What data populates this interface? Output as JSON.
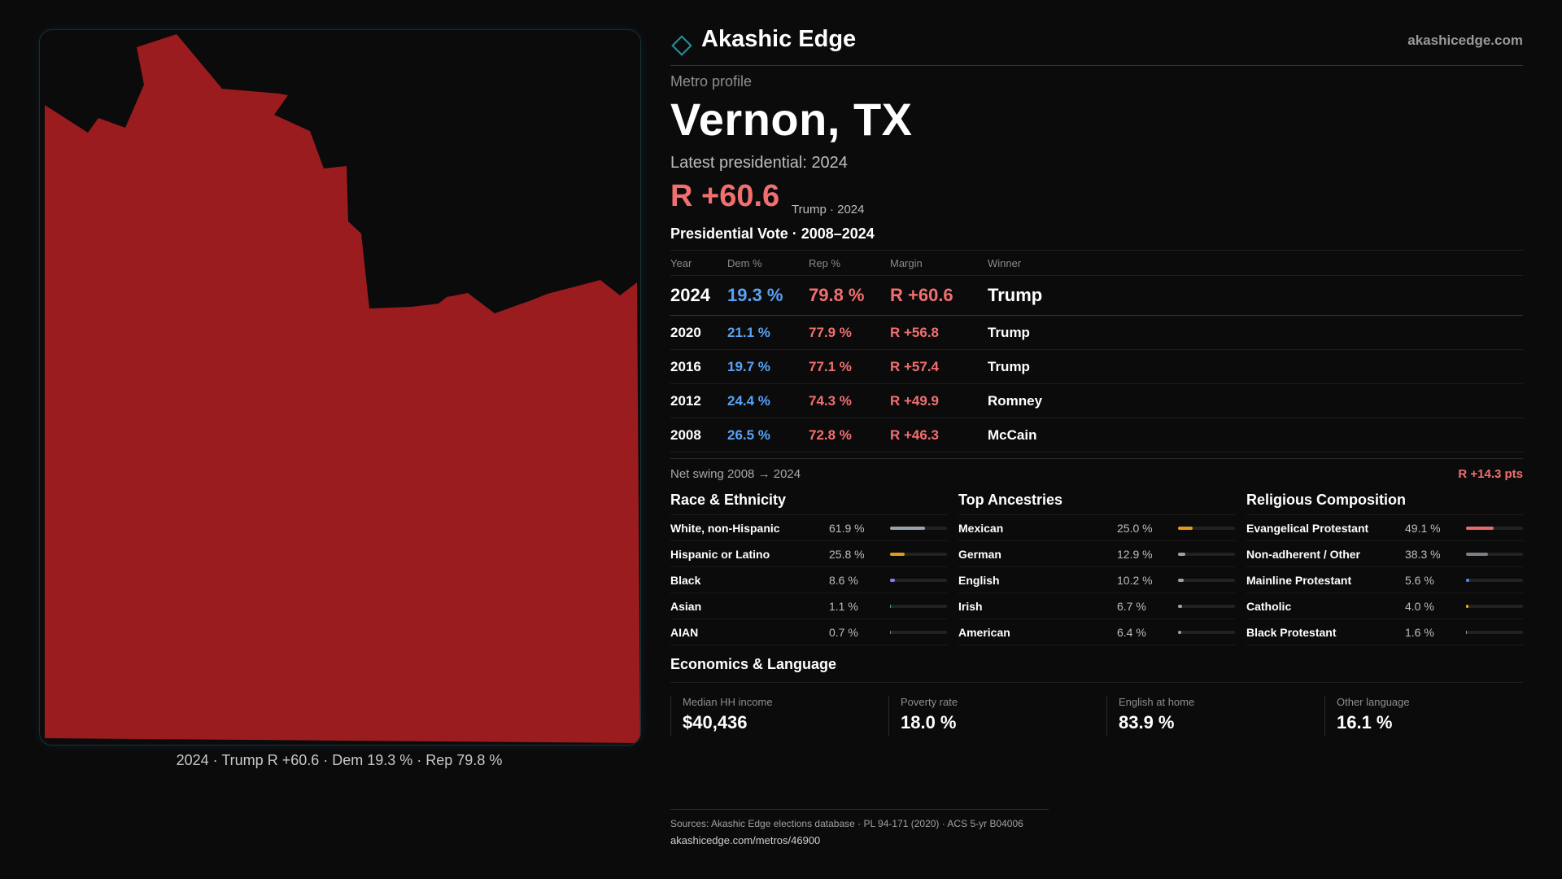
{
  "map": {
    "fill_color": "#9b1c1f",
    "caption": "2024 · Trump R +60.6 · Dem 19.3 % · Rep 79.8 %"
  },
  "brand": {
    "name": "Akashic Edge",
    "url": "akashicedge.com",
    "logo_icon": "diamond-icon",
    "accent": "#2a8fa0"
  },
  "profile": {
    "eyebrow": "Metro profile",
    "title": "Vernon, TX",
    "latest_label": "Latest presidential: 2024",
    "margin_big": "R +60.6",
    "margin_sub": "Trump · 2024"
  },
  "vote": {
    "title": "Presidential Vote · 2008–2024",
    "headers": [
      "Year",
      "Dem %",
      "Rep %",
      "Margin",
      "Winner"
    ],
    "rows": [
      {
        "year": "2024",
        "dem": "19.3 %",
        "rep": "79.8 %",
        "margin": "R +60.6",
        "winner": "Trump"
      },
      {
        "year": "2020",
        "dem": "21.1 %",
        "rep": "77.9 %",
        "margin": "R +56.8",
        "winner": "Trump"
      },
      {
        "year": "2016",
        "dem": "19.7 %",
        "rep": "77.1 %",
        "margin": "R +57.4",
        "winner": "Trump"
      },
      {
        "year": "2012",
        "dem": "24.4 %",
        "rep": "74.3 %",
        "margin": "R +49.9",
        "winner": "Romney"
      },
      {
        "year": "2008",
        "dem": "26.5 %",
        "rep": "72.8 %",
        "margin": "R +46.3",
        "winner": "McCain"
      }
    ],
    "swing_label": "Net swing 2008 → 2024",
    "swing_value": "R +14.3 pts",
    "dem_color": "#5aa2f5",
    "rep_color": "#f26f6f"
  },
  "race": {
    "title": "Race & Ethnicity",
    "rows": [
      {
        "label": "White, non-Hispanic",
        "value": "61.9 %",
        "share": 0.619,
        "color": "#9aa3ad"
      },
      {
        "label": "Hispanic or Latino",
        "value": "25.8 %",
        "share": 0.258,
        "color": "#e09b1c"
      },
      {
        "label": "Black",
        "value": "8.6 %",
        "share": 0.086,
        "color": "#8a7cf0"
      },
      {
        "label": "Asian",
        "value": "1.1 %",
        "share": 0.011,
        "color": "#2fb3a6"
      },
      {
        "label": "AIAN",
        "value": "0.7 %",
        "share": 0.007,
        "color": "#8a8a8a"
      }
    ]
  },
  "ancestry": {
    "title": "Top Ancestries",
    "rows": [
      {
        "label": "Mexican",
        "value": "25.0 %",
        "share": 0.25,
        "color": "#e09b1c"
      },
      {
        "label": "German",
        "value": "12.9 %",
        "share": 0.129,
        "color": "#9aa3ad"
      },
      {
        "label": "English",
        "value": "10.2 %",
        "share": 0.102,
        "color": "#9aa3ad"
      },
      {
        "label": "Irish",
        "value": "6.7 %",
        "share": 0.067,
        "color": "#9aa3ad"
      },
      {
        "label": "American",
        "value": "6.4 %",
        "share": 0.064,
        "color": "#9aa3ad"
      }
    ]
  },
  "religion": {
    "title": "Religious Composition",
    "rows": [
      {
        "label": "Evangelical Protestant",
        "value": "49.1 %",
        "share": 0.491,
        "color": "#e86a6a"
      },
      {
        "label": "Non-adherent / Other",
        "value": "38.3 %",
        "share": 0.383,
        "color": "#7a8088"
      },
      {
        "label": "Mainline Protestant",
        "value": "5.6 %",
        "share": 0.056,
        "color": "#4a8ef0"
      },
      {
        "label": "Catholic",
        "value": "4.0 %",
        "share": 0.04,
        "color": "#e0b21c"
      },
      {
        "label": "Black Protestant",
        "value": "1.6 %",
        "share": 0.016,
        "color": "#9aa3ad"
      }
    ]
  },
  "economics": {
    "title": "Economics & Language",
    "cells": [
      {
        "label": "Median HH income",
        "value": "$40,436"
      },
      {
        "label": "Poverty rate",
        "value": "18.0 %"
      },
      {
        "label": "English at home",
        "value": "83.9 %"
      },
      {
        "label": "Other language",
        "value": "16.1 %"
      }
    ]
  },
  "footer": {
    "sources": "Sources: Akashic Edge elections database · PL 94-171 (2020) · ACS 5-yr B04006",
    "url": "akashicedge.com/metros/46900"
  }
}
